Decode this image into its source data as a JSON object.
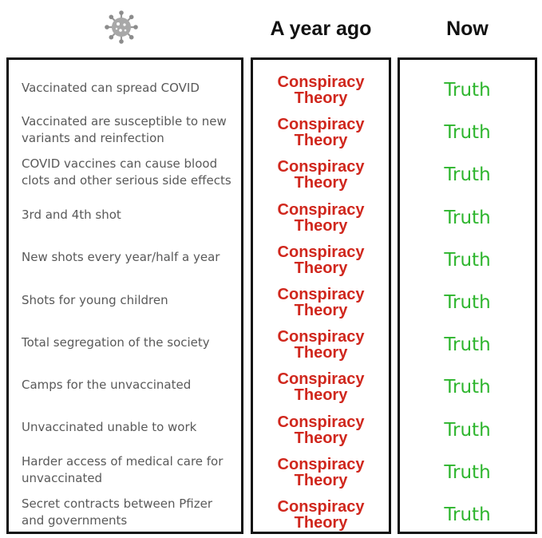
{
  "header": {
    "icon": "virus-icon",
    "col_ago": "A year ago",
    "col_now": "Now"
  },
  "colors": {
    "conspiracy": "#d0271d",
    "truth": "#2db52d",
    "claim_text": "#595959",
    "border": "#111111"
  },
  "rows": [
    {
      "claim": "Vaccinated can spread COVID",
      "ago": "Conspiracy Theory",
      "now": "Truth"
    },
    {
      "claim": "Vaccinated are susceptible to new variants and reinfection",
      "ago": "Conspiracy Theory",
      "now": "Truth"
    },
    {
      "claim": "COVID vaccines can cause blood clots and other serious side effects",
      "ago": "Conspiracy Theory",
      "now": "Truth"
    },
    {
      "claim": "3rd and 4th shot",
      "ago": "Conspiracy Theory",
      "now": "Truth"
    },
    {
      "claim": "New shots every year/half a year",
      "ago": "Conspiracy Theory",
      "now": "Truth"
    },
    {
      "claim": "Shots for young children",
      "ago": "Conspiracy Theory",
      "now": "Truth"
    },
    {
      "claim": "Total segregation of the society",
      "ago": "Conspiracy Theory",
      "now": "Truth"
    },
    {
      "claim": "Camps for the unvaccinated",
      "ago": "Conspiracy Theory",
      "now": "Truth"
    },
    {
      "claim": "Unvaccinated unable to work",
      "ago": "Conspiracy Theory",
      "now": "Truth"
    },
    {
      "claim": "Harder access of medical care for unvaccinated",
      "ago": "Conspiracy Theory",
      "now": "Truth"
    },
    {
      "claim": "Secret contracts between Pfizer and governments",
      "ago": "Conspiracy Theory",
      "now": "Truth"
    }
  ]
}
